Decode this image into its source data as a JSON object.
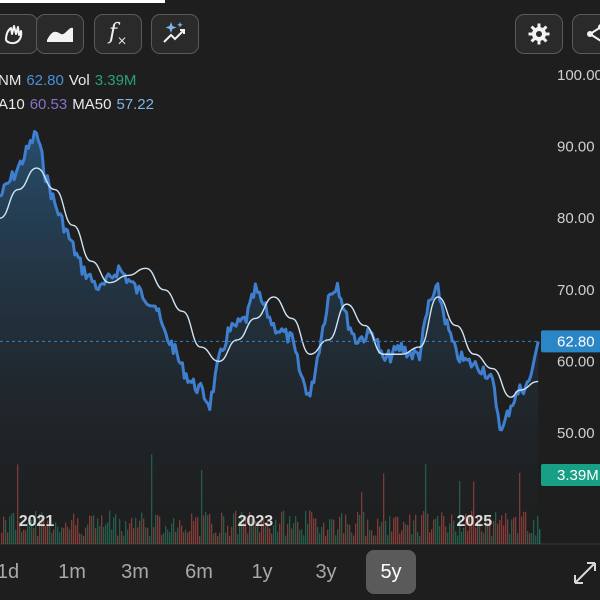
{
  "toolbar": {
    "buttons": [
      {
        "name": "draw-hand-icon"
      },
      {
        "name": "area-chart-icon"
      },
      {
        "name": "function-icon",
        "label": "f"
      },
      {
        "name": "ai-trend-icon"
      }
    ],
    "settings": "gear-icon",
    "share": "share-icon"
  },
  "info": {
    "price_label": "NM",
    "price_value": "62.80",
    "vol_label": "Vol",
    "vol_value": "3.39M",
    "ma10_label": "A10",
    "ma10_value": "60.53",
    "ma50_label": "MA50",
    "ma50_value": "57.22"
  },
  "colors": {
    "price": "#3f7fd0",
    "ma": "#cfe4f5",
    "volume_up": "#2b8a6e",
    "volume_down": "#c8504a",
    "price_tag": "#2b86c5",
    "volume_tag": "#17a085",
    "active_range": "#5a5a5a"
  },
  "chart_data": {
    "type": "line",
    "x_ticks": [
      "2021",
      "2023",
      "2025"
    ],
    "y_ticks": [
      "100.00",
      "90.00",
      "80.00",
      "70.00",
      "60.00",
      "50.00"
    ],
    "ylim": [
      45,
      100
    ],
    "current_price_tag": "62.80",
    "current_volume_tag": "3.39M",
    "series": [
      {
        "x": [
          "2020-09",
          "2020-11",
          "2021-01",
          "2021-02",
          "2021-03",
          "2021-04",
          "2021-05",
          "2021-06",
          "2021-08",
          "2021-10",
          "2021-12",
          "2022-02",
          "2022-03",
          "2022-04",
          "2022-05",
          "2022-06",
          "2022-07",
          "2022-08",
          "2022-09",
          "2022-10",
          "2022-12",
          "2023-01",
          "2023-03",
          "2023-05",
          "2023-06",
          "2023-07",
          "2023-08",
          "2023-09",
          "2023-10",
          "2023-11",
          "2023-12",
          "2024-02",
          "2024-03",
          "2024-04",
          "2024-05",
          "2024-06",
          "2024-07",
          "2024-08",
          "2024-09",
          "2024-10",
          "2024-11",
          "2024-12",
          "2025-02",
          "2025-03",
          "2025-04",
          "2025-05",
          "2025-06",
          "2025-07",
          "2025-08"
        ],
        "values": [
          83,
          87,
          92,
          86,
          82,
          79,
          76,
          73,
          70,
          73,
          70,
          68,
          64,
          62,
          59,
          57,
          56,
          54,
          60,
          64,
          66,
          70,
          65,
          63,
          58,
          55,
          62,
          69,
          71,
          66,
          63,
          64,
          60,
          61,
          62,
          61,
          61,
          68,
          70,
          65,
          61,
          60,
          59,
          57,
          50,
          54,
          56,
          57,
          62.8
        ]
      },
      {
        "x": [
          "2020-09",
          "2020-11",
          "2021-01",
          "2021-03",
          "2021-05",
          "2021-07",
          "2021-09",
          "2021-11",
          "2022-01",
          "2022-03",
          "2022-05",
          "2022-07",
          "2022-09",
          "2022-11",
          "2023-01",
          "2023-03",
          "2023-05",
          "2023-07",
          "2023-09",
          "2023-11",
          "2024-01",
          "2024-03",
          "2024-05",
          "2024-07",
          "2024-09",
          "2024-11",
          "2025-01",
          "2025-03",
          "2025-05",
          "2025-06",
          "2025-08"
        ],
        "values": [
          80,
          84,
          87,
          84,
          79,
          74,
          71,
          72,
          73,
          70,
          67,
          62,
          60,
          63,
          66,
          69,
          66,
          61,
          63,
          68,
          65,
          61,
          61,
          62,
          69,
          65,
          61,
          59,
          55,
          56,
          57.2
        ]
      }
    ]
  },
  "ranges": [
    {
      "label": "1d"
    },
    {
      "label": "1m"
    },
    {
      "label": "3m"
    },
    {
      "label": "6m"
    },
    {
      "label": "1y"
    },
    {
      "label": "3y"
    },
    {
      "label": "5y",
      "active": true
    }
  ]
}
